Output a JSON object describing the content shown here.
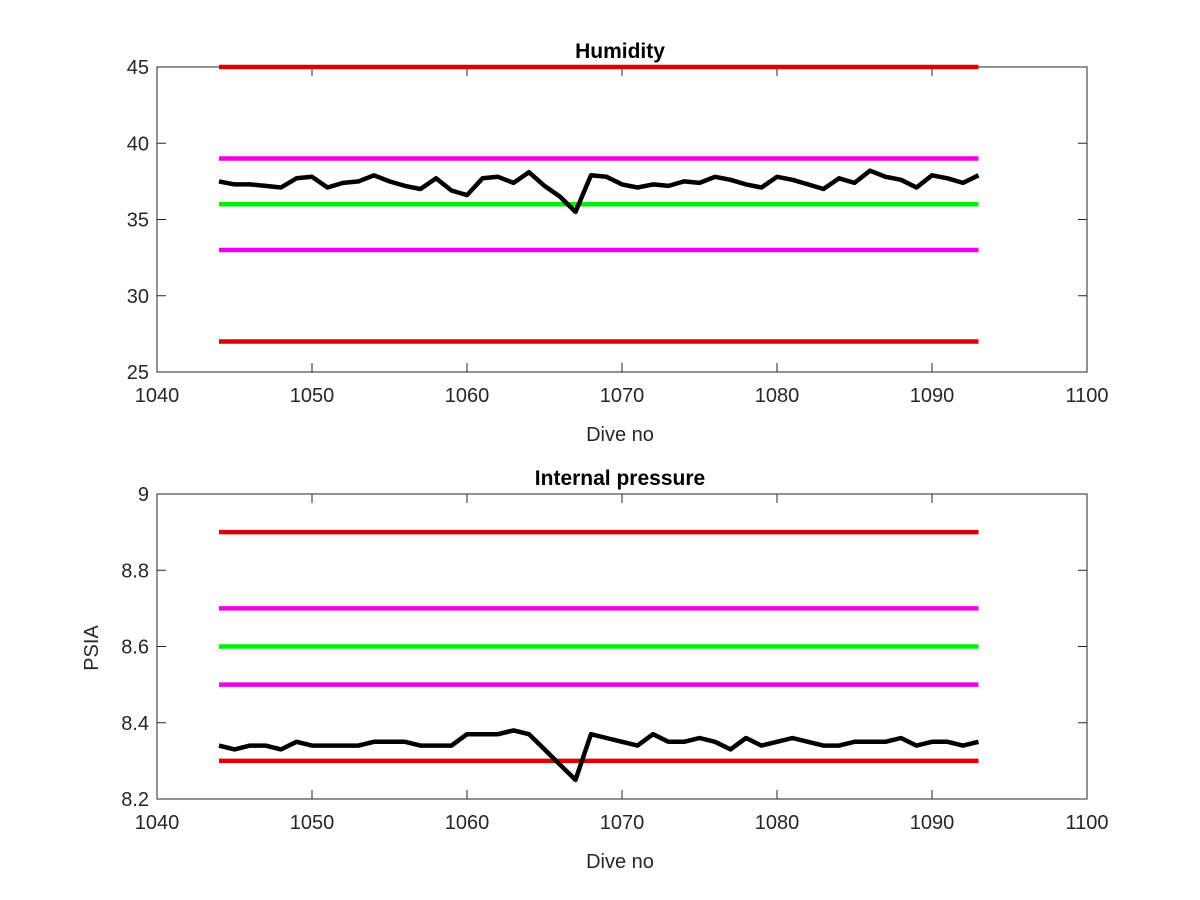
{
  "colors": {
    "data_line": "#000000",
    "red_limit": "#dd0000",
    "magenta_limit": "#ee00ee",
    "green_target": "#00ee00",
    "axes": "#262626"
  },
  "chart_data": [
    {
      "type": "line",
      "title": "Humidity",
      "xlabel": "Dive no",
      "ylabel": "",
      "xlim": [
        1040,
        1100
      ],
      "ylim": [
        25,
        45
      ],
      "xticks": [
        "1040",
        "1050",
        "1060",
        "1070",
        "1080",
        "1090",
        "1100"
      ],
      "yticks": [
        "25",
        "30",
        "35",
        "40",
        "45"
      ],
      "grid": false,
      "series": [
        {
          "color": "#000000",
          "x": [
            1044,
            1045,
            1046,
            1047,
            1048,
            1049,
            1050,
            1051,
            1052,
            1053,
            1054,
            1055,
            1056,
            1057,
            1058,
            1059,
            1060,
            1061,
            1062,
            1063,
            1064,
            1065,
            1066,
            1067,
            1068,
            1069,
            1070,
            1071,
            1072,
            1073,
            1074,
            1075,
            1076,
            1077,
            1078,
            1079,
            1080,
            1081,
            1082,
            1083,
            1084,
            1085,
            1086,
            1087,
            1088,
            1089,
            1090,
            1091,
            1092,
            1093
          ],
          "y": [
            37.5,
            37.3,
            37.3,
            37.2,
            37.1,
            37.7,
            37.8,
            37.1,
            37.4,
            37.5,
            37.9,
            37.5,
            37.2,
            37.0,
            37.7,
            36.9,
            36.6,
            37.7,
            37.8,
            37.4,
            38.1,
            37.2,
            36.5,
            35.5,
            37.9,
            37.8,
            37.3,
            37.1,
            37.3,
            37.2,
            37.5,
            37.4,
            37.8,
            37.6,
            37.3,
            37.1,
            37.8,
            37.6,
            37.3,
            37.0,
            37.7,
            37.4,
            38.2,
            37.8,
            37.6,
            37.1,
            37.9,
            37.7,
            37.4,
            37.9
          ]
        },
        {
          "color": "#dd0000",
          "x": [
            1044,
            1093
          ],
          "y": [
            45,
            45
          ]
        },
        {
          "color": "#ee00ee",
          "x": [
            1044,
            1093
          ],
          "y": [
            39,
            39
          ]
        },
        {
          "color": "#00ee00",
          "x": [
            1044,
            1093
          ],
          "y": [
            36,
            36
          ]
        },
        {
          "color": "#ee00ee",
          "x": [
            1044,
            1093
          ],
          "y": [
            33,
            33
          ]
        },
        {
          "color": "#dd0000",
          "x": [
            1044,
            1093
          ],
          "y": [
            27,
            27
          ]
        }
      ]
    },
    {
      "type": "line",
      "title": "Internal pressure",
      "xlabel": "Dive no",
      "ylabel": "PSIA",
      "xlim": [
        1040,
        1100
      ],
      "ylim": [
        8.2,
        9
      ],
      "xticks": [
        "1040",
        "1050",
        "1060",
        "1070",
        "1080",
        "1090",
        "1100"
      ],
      "yticks": [
        "8.2",
        "8.4",
        "8.6",
        "8.8",
        "9"
      ],
      "grid": false,
      "series": [
        {
          "color": "#000000",
          "x": [
            1044,
            1045,
            1046,
            1047,
            1048,
            1049,
            1050,
            1051,
            1052,
            1053,
            1054,
            1055,
            1056,
            1057,
            1058,
            1059,
            1060,
            1061,
            1062,
            1063,
            1064,
            1065,
            1066,
            1067,
            1068,
            1069,
            1070,
            1071,
            1072,
            1073,
            1074,
            1075,
            1076,
            1077,
            1078,
            1079,
            1080,
            1081,
            1082,
            1083,
            1084,
            1085,
            1086,
            1087,
            1088,
            1089,
            1090,
            1091,
            1092,
            1093
          ],
          "y": [
            8.34,
            8.33,
            8.34,
            8.34,
            8.33,
            8.35,
            8.34,
            8.34,
            8.34,
            8.34,
            8.35,
            8.35,
            8.35,
            8.34,
            8.34,
            8.34,
            8.37,
            8.37,
            8.37,
            8.38,
            8.37,
            8.33,
            8.29,
            8.25,
            8.37,
            8.36,
            8.35,
            8.34,
            8.37,
            8.35,
            8.35,
            8.36,
            8.35,
            8.33,
            8.36,
            8.34,
            8.35,
            8.36,
            8.35,
            8.34,
            8.34,
            8.35,
            8.35,
            8.35,
            8.36,
            8.34,
            8.35,
            8.35,
            8.34,
            8.35
          ]
        },
        {
          "color": "#dd0000",
          "x": [
            1044,
            1093
          ],
          "y": [
            8.9,
            8.9
          ]
        },
        {
          "color": "#ee00ee",
          "x": [
            1044,
            1093
          ],
          "y": [
            8.7,
            8.7
          ]
        },
        {
          "color": "#00ee00",
          "x": [
            1044,
            1093
          ],
          "y": [
            8.6,
            8.6
          ]
        },
        {
          "color": "#ee00ee",
          "x": [
            1044,
            1093
          ],
          "y": [
            8.5,
            8.5
          ]
        },
        {
          "color": "#dd0000",
          "x": [
            1044,
            1093
          ],
          "y": [
            8.3,
            8.3
          ]
        }
      ]
    }
  ]
}
